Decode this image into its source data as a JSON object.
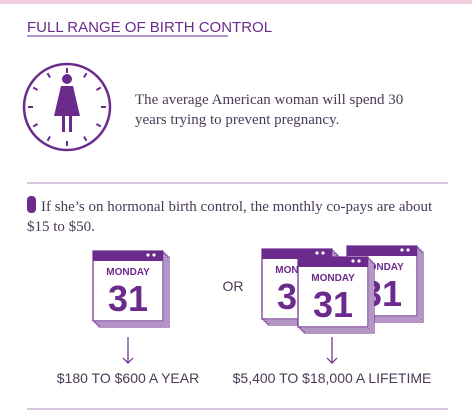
{
  "header": {
    "title": "FULL RANGE OF BIRTH CONTROL"
  },
  "intro": {
    "text": "The average American woman will spend 30 years trying to prevent pregnancy."
  },
  "copay": {
    "text": "If she’s on hormonal birth control, the monthly co-pays are about $15 to $50."
  },
  "calendar": {
    "day": "MONDAY",
    "date": "31"
  },
  "separator": "OR",
  "costs": {
    "year": "$180 TO $600 A YEAR",
    "lifetime": "$5,400 TO $18,000 A LIFETIME"
  }
}
